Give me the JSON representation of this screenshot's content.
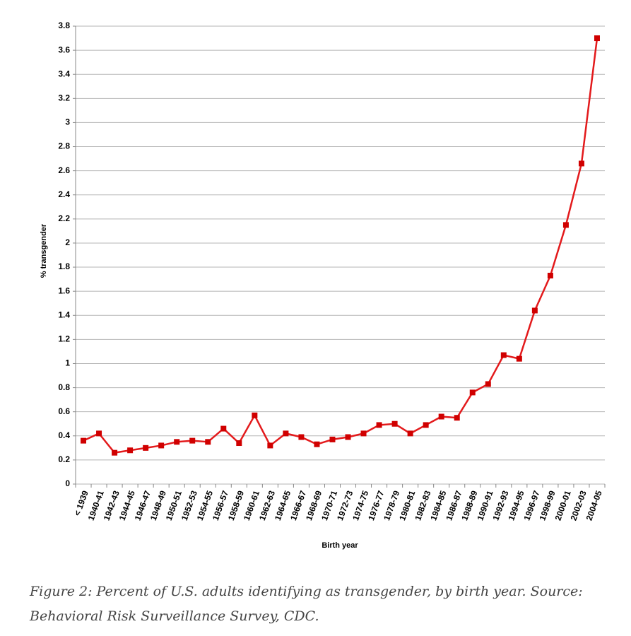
{
  "chart_data": {
    "type": "line",
    "xlabel": "Birth year",
    "ylabel": "% transgender",
    "categories": [
      "< 1939",
      "1940-41",
      "1942-43",
      "1944-45",
      "1946-47",
      "1948-49",
      "1950-51",
      "1952-53",
      "1954-55",
      "1956-57",
      "1958-59",
      "1960-61",
      "1962-63",
      "1964-65",
      "1966-67",
      "1968-69",
      "1970-71",
      "1972-73",
      "1974-75",
      "1976-77",
      "1978-79",
      "1980-81",
      "1982-83",
      "1984-85",
      "1986-87",
      "1988-89",
      "1990-91",
      "1992-93",
      "1994-95",
      "1996-97",
      "1998-99",
      "2000-01",
      "2002-03",
      "2004-05"
    ],
    "values": [
      0.36,
      0.42,
      0.26,
      0.28,
      0.3,
      0.32,
      0.35,
      0.36,
      0.35,
      0.46,
      0.34,
      0.57,
      0.32,
      0.42,
      0.39,
      0.33,
      0.37,
      0.39,
      0.42,
      0.49,
      0.5,
      0.42,
      0.49,
      0.56,
      0.55,
      0.76,
      0.83,
      1.07,
      1.04,
      1.44,
      1.73,
      2.15,
      2.66,
      3.7
    ],
    "color": "#e31a1c",
    "ylim": [
      0,
      3.8
    ],
    "yticks": [
      0,
      0.2,
      0.4,
      0.6,
      0.8,
      1,
      1.2,
      1.4,
      1.6,
      1.8,
      2,
      2.2,
      2.4,
      2.6,
      2.8,
      3,
      3.2,
      3.4,
      3.6,
      3.8
    ],
    "grid": true
  },
  "caption": "Figure 2: Percent of U.S. adults identifying as transgender, by birth year. Source: Behavioral Risk Surveillance Survey, CDC."
}
